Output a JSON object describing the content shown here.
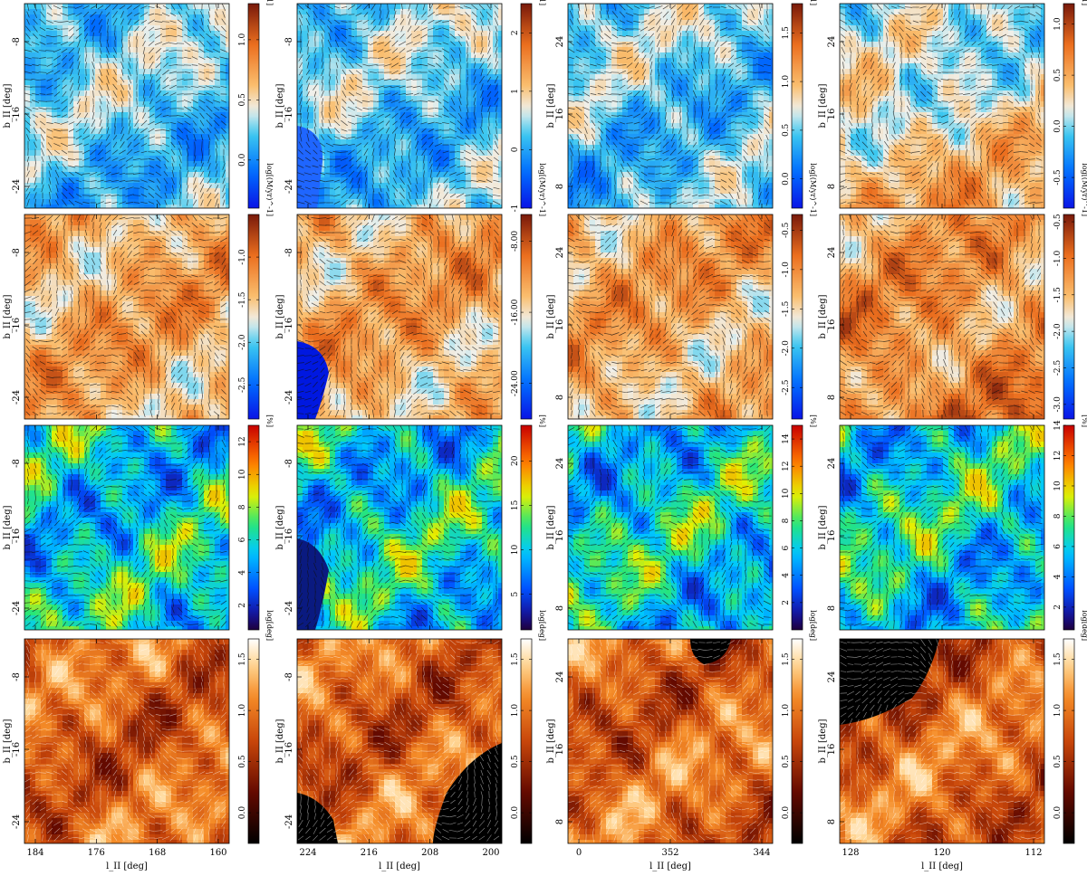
{
  "figure": {
    "columns": [
      {
        "ylabel": "b_II [deg]",
        "xlabel": "l_II [deg]",
        "xticks": [
          "184",
          "176",
          "168",
          "160"
        ],
        "yticks": [
          "-8",
          "-16",
          "-24"
        ]
      },
      {
        "ylabel": "b_II [deg]",
        "xlabel": "l_II [deg]",
        "xticks": [
          "224",
          "216",
          "208",
          "200"
        ],
        "yticks": [
          "-8",
          "-16",
          "-24"
        ]
      },
      {
        "ylabel": "b_II [deg]",
        "xlabel": "l_II [deg]",
        "xticks": [
          "0",
          "352",
          "344"
        ],
        "yticks": [
          "24",
          "16",
          "8"
        ]
      },
      {
        "ylabel": "b_II [deg]",
        "xlabel": "l_II [deg]",
        "xticks": [
          "128",
          "120",
          "112"
        ],
        "yticks": [
          "24",
          "16",
          "8"
        ]
      }
    ],
    "rows": [
      {
        "colormap": "blue-white-orange",
        "panels": [
          {
            "cbar_label": "log[(M/yr)^-1]",
            "cbar_ticks": [
              "1.0",
              "0.5",
              "0.0"
            ],
            "cbar_range": [
              -0.4,
              1.3
            ]
          },
          {
            "cbar_label": "log[(M/yr)^-1]",
            "cbar_ticks": [
              "2",
              "1",
              "0",
              "-1"
            ],
            "cbar_range": [
              -1.0,
              2.5
            ]
          },
          {
            "cbar_label": "log[(M/yr)^-1]",
            "cbar_ticks": [
              "1.5",
              "1.0",
              "0.5",
              "0.0"
            ],
            "cbar_range": [
              -0.3,
              1.8
            ]
          },
          {
            "cbar_label": "log[(M/yr)^-1]",
            "cbar_ticks": [
              "1.0",
              "0.5",
              "0.0",
              "-0.5"
            ],
            "cbar_range": [
              -0.8,
              1.2
            ]
          }
        ]
      },
      {
        "colormap": "blue-white-orange",
        "panels": [
          {
            "cbar_label": "log[(M/yr)^-1]",
            "cbar_ticks": [
              "-1.0",
              "-1.5",
              "-2.0",
              "-2.5"
            ],
            "cbar_range": [
              -2.9,
              -0.5
            ]
          },
          {
            "cbar_label": "log[(M/yr)^-1]",
            "cbar_ticks": [
              "-8.00",
              "-16.00",
              "-24.00"
            ],
            "cbar_range": [
              -28.0,
              -5.0
            ]
          },
          {
            "cbar_label": "log[(M/yr)^-1]",
            "cbar_ticks": [
              "-0.5",
              "-1.0",
              "-1.5",
              "-2.0",
              "-2.5"
            ],
            "cbar_range": [
              -2.9,
              -0.3
            ]
          },
          {
            "cbar_label": "log[(M/yr)^-1]",
            "cbar_ticks": [
              "-0.5",
              "-1.0",
              "-1.5",
              "-2.0",
              "-2.5",
              "-3.0"
            ],
            "cbar_range": [
              -3.2,
              -0.4
            ]
          }
        ]
      },
      {
        "colormap": "jet",
        "panels": [
          {
            "cbar_label": "[%]",
            "cbar_ticks": [
              "12",
              "10",
              "8",
              "6",
              "4",
              "2"
            ],
            "cbar_range": [
              0.5,
              13
            ]
          },
          {
            "cbar_label": "[%]",
            "cbar_ticks": [
              "20",
              "15",
              "10",
              "5"
            ],
            "cbar_range": [
              1,
              24
            ]
          },
          {
            "cbar_label": "[%]",
            "cbar_ticks": [
              "14",
              "12",
              "10",
              "8",
              "6",
              "4",
              "2"
            ],
            "cbar_range": [
              0,
              15
            ]
          },
          {
            "cbar_label": "[%]",
            "cbar_ticks": [
              "14",
              "12",
              "10",
              "8",
              "6",
              "4",
              "2"
            ],
            "cbar_range": [
              0.5,
              14
            ]
          }
        ]
      },
      {
        "colormap": "heat",
        "panels": [
          {
            "cbar_label": "log[deg]",
            "cbar_ticks": [
              "1.5",
              "1.0",
              "0.5",
              "0.0"
            ],
            "cbar_range": [
              -0.3,
              1.7
            ]
          },
          {
            "cbar_label": "log[deg]",
            "cbar_ticks": [
              "1.5",
              "1.0",
              "0.5",
              "0.0"
            ],
            "cbar_range": [
              -0.3,
              1.7
            ]
          },
          {
            "cbar_label": "log[deg]",
            "cbar_ticks": [
              "1.5",
              "1.0",
              "0.5",
              "0.0"
            ],
            "cbar_range": [
              -0.3,
              1.7
            ]
          },
          {
            "cbar_label": "log[deg]",
            "cbar_ticks": [
              "1.5",
              "1.0",
              "0.5",
              "0.0"
            ],
            "cbar_range": [
              -0.3,
              1.7
            ]
          }
        ]
      }
    ]
  }
}
